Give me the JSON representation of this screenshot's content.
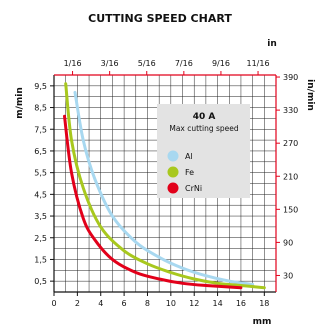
{
  "chart_data": {
    "type": "line",
    "title": "CUTTING SPEED CHART",
    "xlabel": "mm",
    "ylabel": "m/min",
    "top_xlabel": "in",
    "right_ylabel": "in/min",
    "xlim": [
      0,
      19
    ],
    "ylim": [
      0,
      10
    ],
    "x_ticks": [
      "0",
      "2",
      "4",
      "6",
      "8",
      "10",
      "12",
      "14",
      "16",
      "18"
    ],
    "x_tick_values": [
      0,
      2,
      4,
      6,
      8,
      10,
      12,
      14,
      16,
      18
    ],
    "y_ticks": [
      "0,5",
      "1,5",
      "2,5",
      "3,5",
      "4,5",
      "5,5",
      "6,5",
      "7,5",
      "8,5",
      "9,5"
    ],
    "y_tick_values": [
      0.5,
      1.5,
      2.5,
      3.5,
      4.5,
      5.5,
      6.5,
      7.5,
      8.5,
      9.5
    ],
    "top_ticks": [
      "1/16",
      "3/16",
      "5/16",
      "7/16",
      "9/16",
      "11/16"
    ],
    "top_tick_values": [
      1.5875,
      4.7625,
      7.9375,
      11.1125,
      14.2875,
      17.4625
    ],
    "right_ticks": [
      "30",
      "90",
      "150",
      "210",
      "270",
      "330",
      "390"
    ],
    "right_tick_values": [
      0.762,
      2.286,
      3.81,
      5.334,
      6.858,
      8.382,
      9.906
    ],
    "grid": true,
    "legend": {
      "title": "40 A",
      "subtitle": "Max cutting speed",
      "placement": "top-right"
    },
    "series": [
      {
        "name": "Al",
        "color": "#a8d8f0",
        "x": [
          1.8,
          2.5,
          3.5,
          5,
          7,
          9,
          11,
          13,
          15,
          17
        ],
        "y": [
          9.2,
          7.0,
          5.2,
          3.5,
          2.3,
          1.6,
          1.1,
          0.75,
          0.5,
          0.35
        ]
      },
      {
        "name": "Fe",
        "color": "#a8c81e",
        "x": [
          1.0,
          1.5,
          2.5,
          4,
          6,
          8,
          10,
          12,
          14,
          16,
          18
        ],
        "y": [
          9.6,
          7.0,
          4.8,
          3.0,
          1.9,
          1.3,
          0.9,
          0.6,
          0.4,
          0.3,
          0.2
        ]
      },
      {
        "name": "CrNi",
        "color": "#e2001a",
        "x": [
          0.9,
          1.5,
          2.5,
          3.5,
          5,
          7,
          9,
          11,
          13,
          16
        ],
        "y": [
          8.1,
          5.5,
          3.4,
          2.4,
          1.5,
          0.9,
          0.6,
          0.4,
          0.3,
          0.2
        ]
      }
    ]
  }
}
